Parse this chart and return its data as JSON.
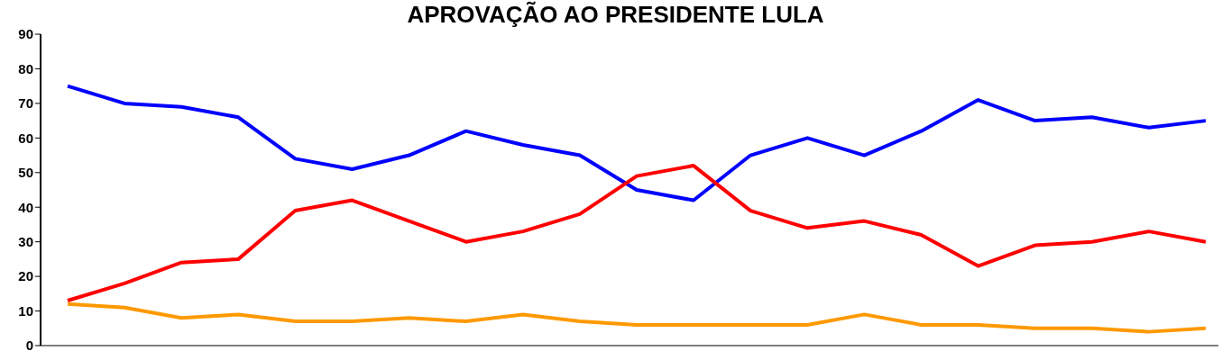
{
  "chart_data": {
    "type": "line",
    "title": "APROVAÇÃO AO PRESIDENTE LULA",
    "categories": [
      null,
      null,
      null,
      null,
      null,
      null,
      null,
      null,
      null,
      null,
      null,
      null,
      null,
      null,
      null,
      null,
      null,
      null,
      null,
      null,
      null
    ],
    "series": [
      {
        "color": "#0000ff",
        "values": [
          75,
          70,
          69,
          66,
          54,
          51,
          55,
          62,
          58,
          55,
          45,
          42,
          55,
          60,
          55,
          62,
          71,
          65,
          66,
          63,
          65
        ]
      },
      {
        "color": "#ff0000",
        "values": [
          13,
          18,
          24,
          25,
          39,
          42,
          36,
          30,
          33,
          38,
          49,
          52,
          39,
          34,
          36,
          32,
          23,
          29,
          30,
          33,
          30
        ]
      },
      {
        "color": "#ff9900",
        "values": [
          12,
          11,
          8,
          9,
          7,
          7,
          8,
          7,
          9,
          7,
          6,
          6,
          6,
          6,
          9,
          6,
          6,
          5,
          5,
          4,
          5
        ]
      }
    ],
    "ylim": [
      0,
      90
    ],
    "yticks": [
      0,
      10,
      20,
      30,
      40,
      50,
      60,
      70,
      80,
      90
    ],
    "grid": false,
    "legend": false,
    "marker": "none",
    "line_style": "solid",
    "tick_labels": "y"
  }
}
